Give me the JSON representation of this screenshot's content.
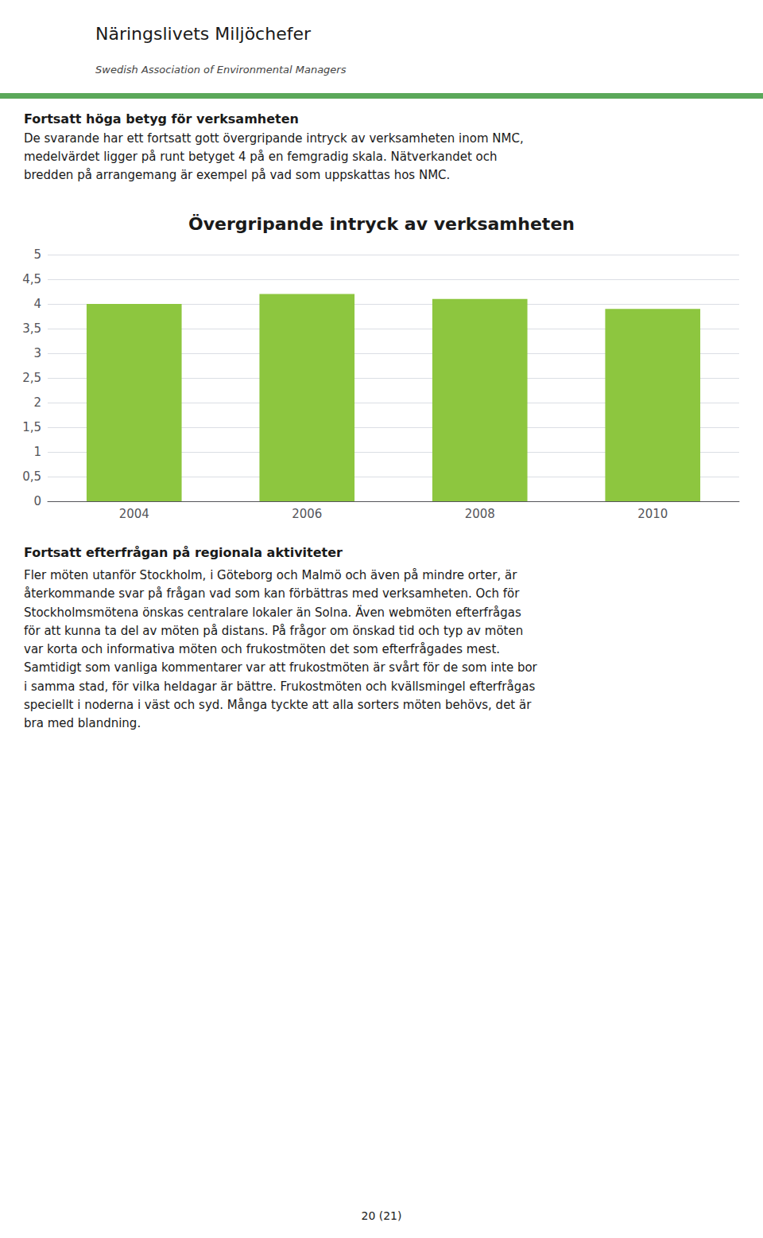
{
  "chart_data": {
    "type": "bar",
    "title": "Övergripande intryck av verksamheten",
    "categories": [
      "2004",
      "2006",
      "2008",
      "2010"
    ],
    "values": [
      4.0,
      4.2,
      4.1,
      3.9
    ],
    "color": "#8DC63F",
    "ylim": [
      0,
      5
    ],
    "yticks": [
      0,
      {
        "value": 0.5,
        "label": "0,5"
      },
      1,
      {
        "value": 1.5,
        "label": "1,5"
      },
      2,
      {
        "value": 2.5,
        "label": "2,5"
      },
      3,
      {
        "value": 3.5,
        "label": "3,5"
      },
      4,
      {
        "value": 4.5,
        "label": "4,5"
      },
      5
    ],
    "grid": true,
    "annotations": [
      "Näringslivets Miljöchefer",
      "Swedish Association of Environmental Managers",
      "Fortsatt höga betyg för verksamheten",
      "De svarande har ett fortsatt gott övergripande intryck av verksamheten inom NMC,",
      "medelvärdet ligger på runt betyget 4 på en femgradig skala. Nätverkandet och",
      "bredden på arrangemang är exempel på vad som uppskattas hos NMC.",
      "Fortsatt efterfrågan på regionala aktiviteter",
      "Fler möten utanför Stockholm, i Göteborg och Malmö och även på mindre orter, är\nåterkommande svar på frågan vad som kan förbättras med verksamheten. Och för\nStockholmsmötena önskas centralare lokaler än Solna. Även webmöten efterfrågas\nför att kunna ta del av möten på distans. På frågor om önskad tid och typ av möten\nvar korta och informativa möten och frukostmöten det som efterfrågades mest.\nSamtidigt som vanliga kommentarer var att frukostmöten är svårt för de som inte bor\ni samma stad, för vilka heldagar är bättre. Frukostmöten och kvällsmingel efterfrågas\nspeciellt i noderna i väst och syd. Många tyckte att alla sorters möten behövs, det är\nbra med blandning.",
      "20 (21)"
    ]
  }
}
